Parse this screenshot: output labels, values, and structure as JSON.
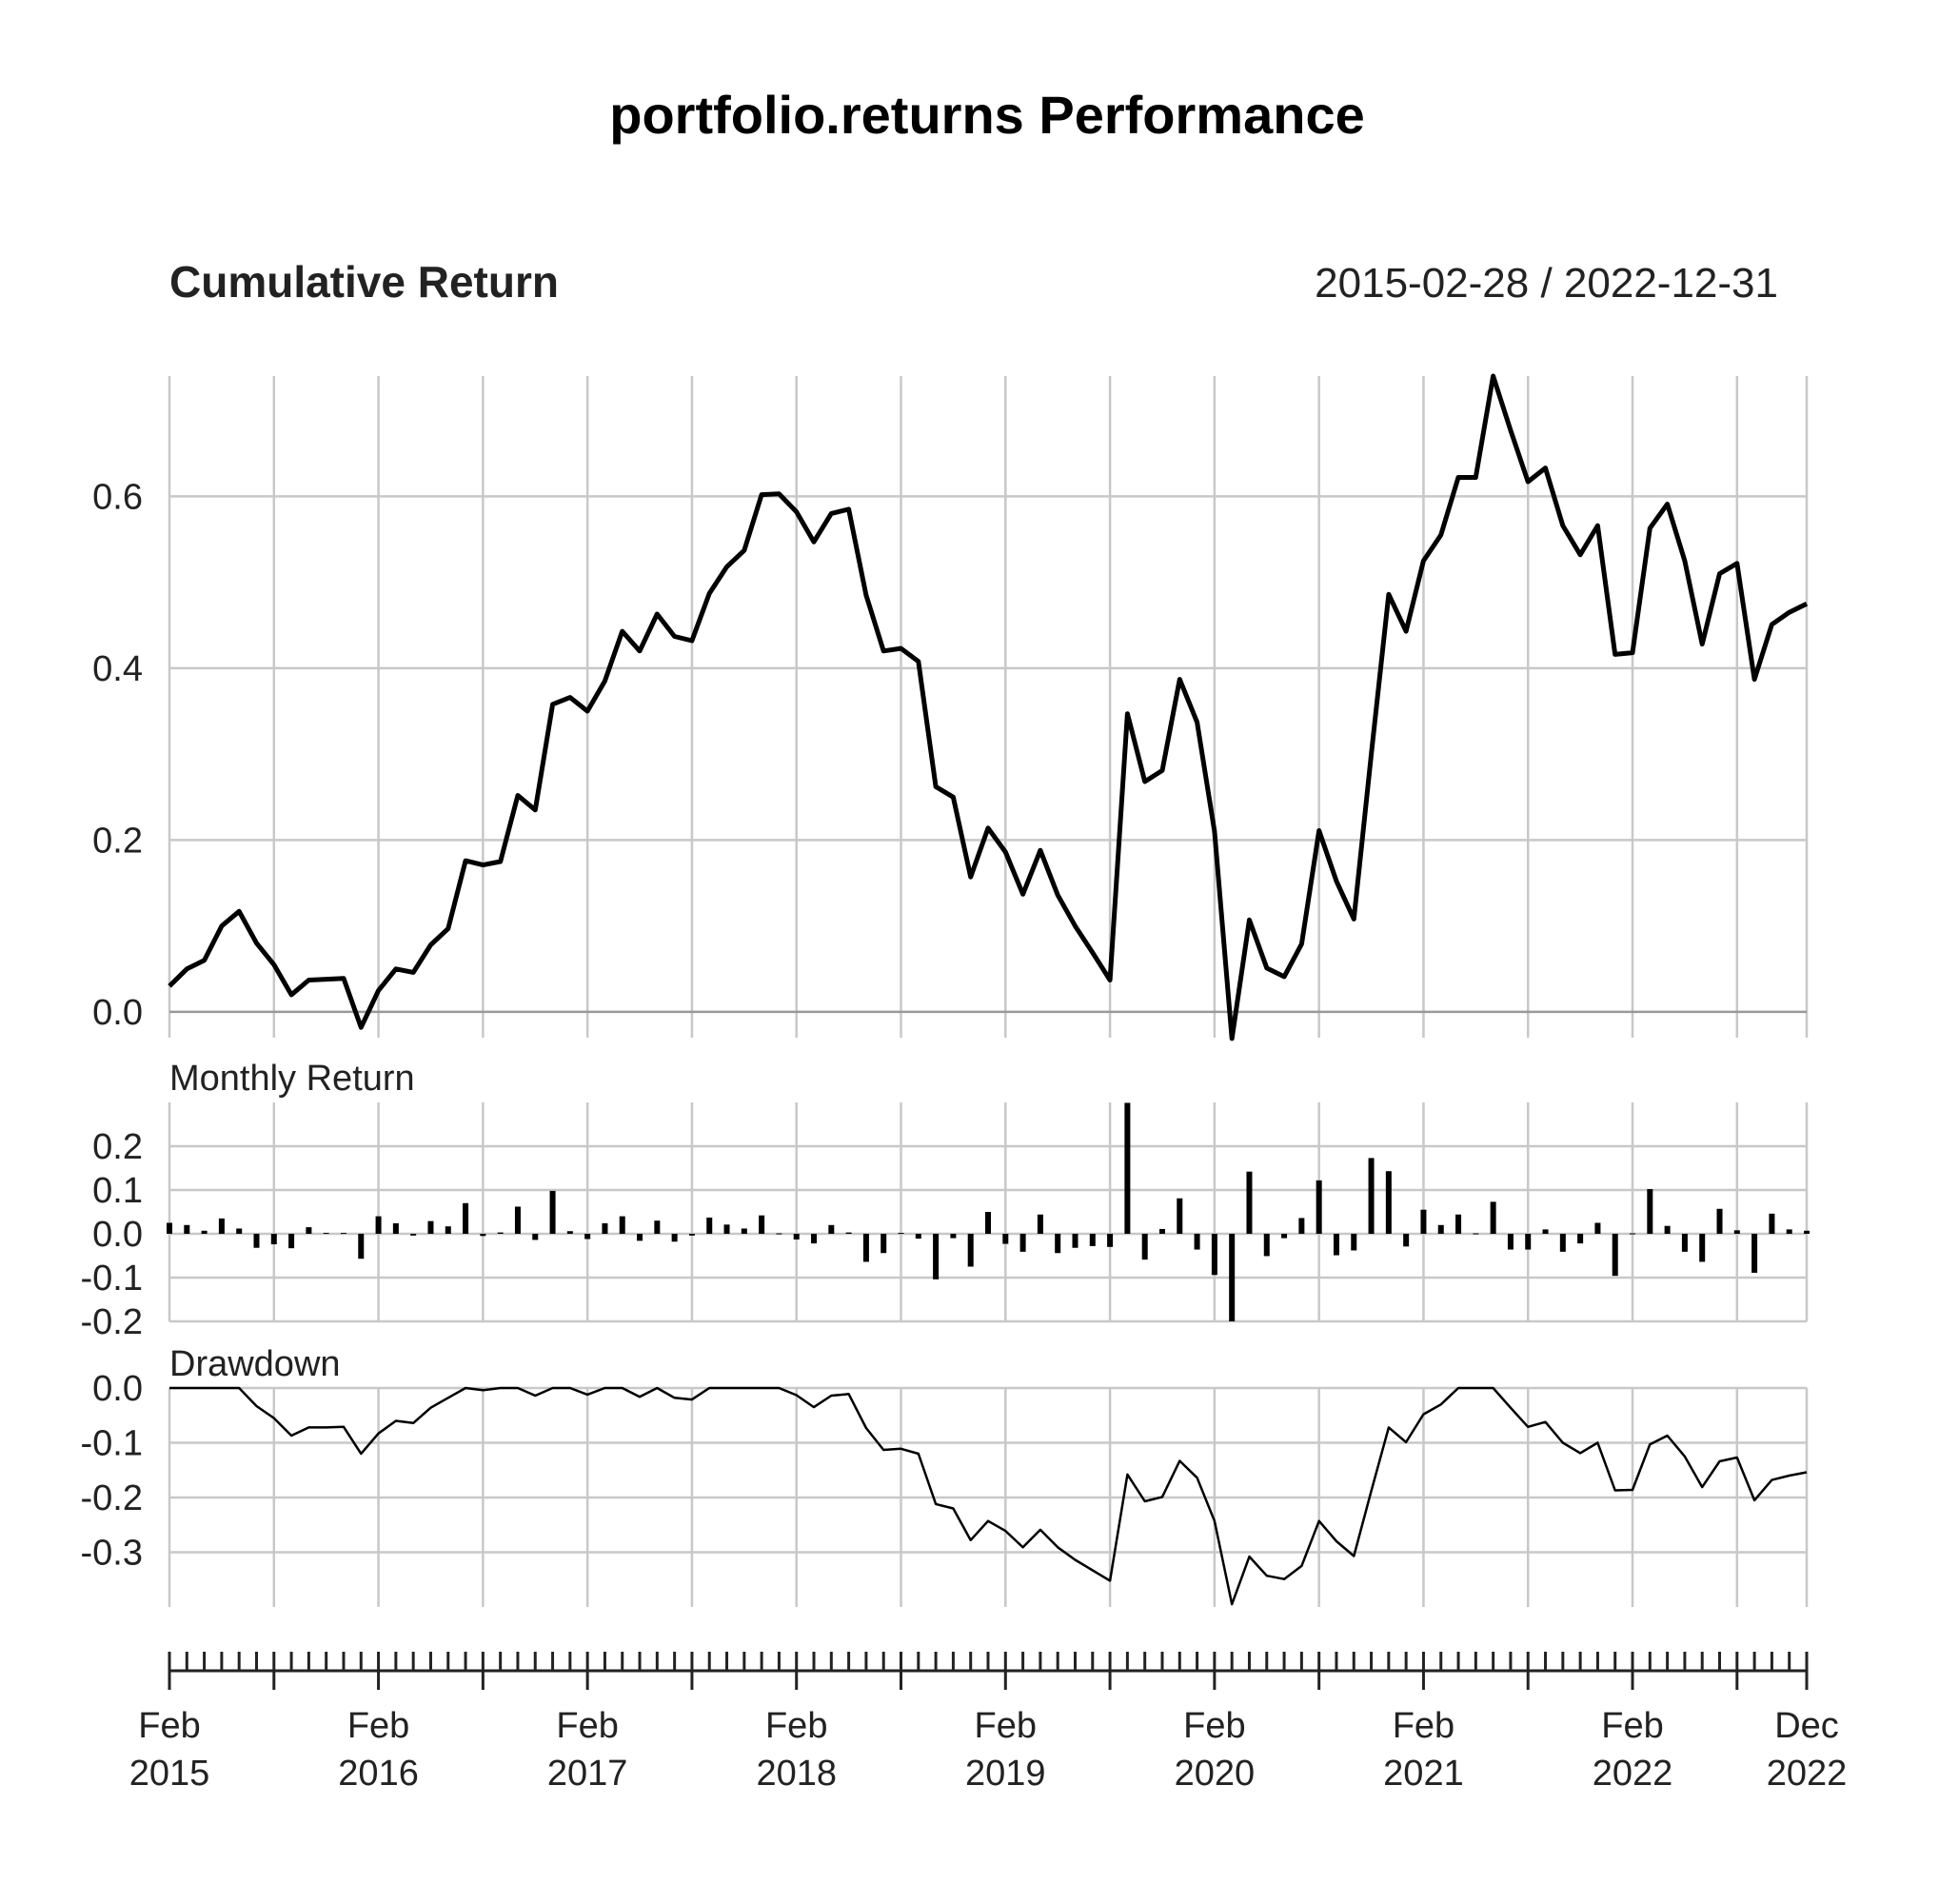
{
  "title": "portfolio.returns Performance",
  "date_range": "2015-02-28 / 2022-12-31",
  "colors": {
    "line": "#000000",
    "grid": "#c8c8c8",
    "zero_line": "#999999",
    "text": "#222222"
  },
  "x_axis": {
    "labels": [
      {
        "date": "2015-02",
        "top": "Feb",
        "bottom": "2015"
      },
      {
        "date": "2016-02",
        "top": "Feb",
        "bottom": "2016"
      },
      {
        "date": "2017-02",
        "top": "Feb",
        "bottom": "2017"
      },
      {
        "date": "2018-02",
        "top": "Feb",
        "bottom": "2018"
      },
      {
        "date": "2019-02",
        "top": "Feb",
        "bottom": "2019"
      },
      {
        "date": "2020-02",
        "top": "Feb",
        "bottom": "2020"
      },
      {
        "date": "2021-02",
        "top": "Feb",
        "bottom": "2021"
      },
      {
        "date": "2022-02",
        "top": "Feb",
        "bottom": "2022"
      },
      {
        "date": "2022-12",
        "top": "Dec",
        "bottom": "2022"
      }
    ],
    "start": "2015-02",
    "end": "2022-12",
    "minor_ticks": "monthly",
    "major_ticks": "every 6 months"
  },
  "chart_data": [
    {
      "type": "line",
      "title": "Cumulative Return",
      "x_start": "2015-02",
      "x_step": "1 month",
      "ylim": [
        -0.03,
        0.74
      ],
      "yticks": [
        "0.0",
        "0.2",
        "0.4",
        "0.6"
      ],
      "grid": true,
      "values": [
        0.03,
        0.05,
        0.06,
        0.1,
        0.117,
        0.08,
        0.055,
        0.02,
        0.037,
        0.038,
        0.039,
        -0.018,
        0.025,
        0.05,
        0.046,
        0.078,
        0.097,
        0.176,
        0.171,
        0.175,
        0.252,
        0.235,
        0.358,
        0.366,
        0.35,
        0.385,
        0.443,
        0.42,
        0.463,
        0.437,
        0.432,
        0.487,
        0.518,
        0.537,
        0.602,
        0.603,
        0.582,
        0.547,
        0.58,
        0.585,
        0.485,
        0.42,
        0.423,
        0.408,
        0.262,
        0.25,
        0.157,
        0.214,
        0.186,
        0.137,
        0.188,
        0.136,
        0.1,
        0.069,
        0.037,
        0.347,
        0.268,
        0.281,
        0.387,
        0.337,
        0.21,
        -0.031,
        0.107,
        0.051,
        0.041,
        0.079,
        0.211,
        0.152,
        0.108,
        0.3,
        0.486,
        0.443,
        0.525,
        0.555,
        0.622,
        0.622,
        0.74,
        0.677,
        0.617,
        0.633,
        0.566,
        0.532,
        0.566,
        0.416,
        0.418,
        0.563,
        0.591,
        0.525,
        0.428,
        0.51,
        0.522,
        0.387,
        0.451,
        0.465,
        0.475
      ]
    },
    {
      "type": "bar",
      "title": "Monthly Return",
      "x_start": "2015-02",
      "x_step": "1 month",
      "ylim": [
        -0.2,
        0.3
      ],
      "yticks": [
        "-0.2",
        "-0.1",
        "0.0",
        "0.1",
        "0.2"
      ],
      "grid": true,
      "values": [
        0.025,
        0.02,
        0.007,
        0.035,
        0.012,
        -0.032,
        -0.024,
        -0.033,
        0.015,
        0.002,
        0.002,
        -0.057,
        0.04,
        0.024,
        -0.004,
        0.029,
        0.017,
        0.07,
        -0.005,
        0.003,
        0.062,
        -0.014,
        0.098,
        0.006,
        -0.012,
        0.024,
        0.04,
        -0.016,
        0.03,
        -0.018,
        -0.004,
        0.037,
        0.021,
        0.012,
        0.042,
        0.001,
        -0.013,
        -0.022,
        0.02,
        0.003,
        -0.064,
        -0.044,
        0.002,
        -0.011,
        -0.104,
        -0.01,
        -0.075,
        0.05,
        -0.023,
        -0.041,
        0.044,
        -0.044,
        -0.032,
        -0.028,
        -0.03,
        0.299,
        -0.059,
        0.011,
        0.081,
        -0.036,
        -0.094,
        -0.202,
        0.142,
        -0.051,
        -0.01,
        0.036,
        0.122,
        -0.049,
        -0.038,
        0.173,
        0.143,
        -0.029,
        0.055,
        0.02,
        0.044,
        0.001,
        0.073,
        -0.036,
        -0.036,
        0.01,
        -0.041,
        -0.022,
        0.025,
        -0.096,
        0.001,
        0.102,
        0.018,
        -0.041,
        -0.064,
        0.057,
        0.008,
        -0.089,
        0.046,
        0.01,
        0.007
      ]
    },
    {
      "type": "line",
      "title": "Drawdown",
      "x_start": "2015-02",
      "x_step": "1 month",
      "ylim": [
        -0.4,
        0.0
      ],
      "yticks": [
        "-0.3",
        "-0.2",
        "-0.1",
        "0.0"
      ],
      "grid": true,
      "values": [
        0.0,
        0.0,
        0.0,
        0.0,
        0.0,
        -0.033,
        -0.055,
        -0.087,
        -0.072,
        -0.072,
        -0.071,
        -0.12,
        -0.083,
        -0.06,
        -0.064,
        -0.036,
        -0.018,
        0.0,
        -0.004,
        0.0,
        0.0,
        -0.014,
        0.0,
        0.0,
        -0.012,
        0.0,
        0.0,
        -0.016,
        0.0,
        -0.018,
        -0.021,
        0.0,
        0.0,
        0.0,
        0.0,
        0.0,
        -0.013,
        -0.035,
        -0.014,
        -0.011,
        -0.073,
        -0.113,
        -0.111,
        -0.12,
        -0.212,
        -0.22,
        -0.278,
        -0.243,
        -0.261,
        -0.291,
        -0.259,
        -0.291,
        -0.314,
        -0.333,
        -0.352,
        -0.158,
        -0.207,
        -0.199,
        -0.133,
        -0.164,
        -0.243,
        -0.395,
        -0.308,
        -0.343,
        -0.349,
        -0.325,
        -0.243,
        -0.28,
        -0.307,
        -0.188,
        -0.072,
        -0.099,
        -0.048,
        -0.03,
        0.0,
        0.0,
        0.0,
        -0.036,
        -0.071,
        -0.062,
        -0.1,
        -0.119,
        -0.1,
        -0.187,
        -0.186,
        -0.103,
        -0.087,
        -0.125,
        -0.181,
        -0.134,
        -0.127,
        -0.205,
        -0.168,
        -0.16,
        -0.154
      ]
    }
  ]
}
